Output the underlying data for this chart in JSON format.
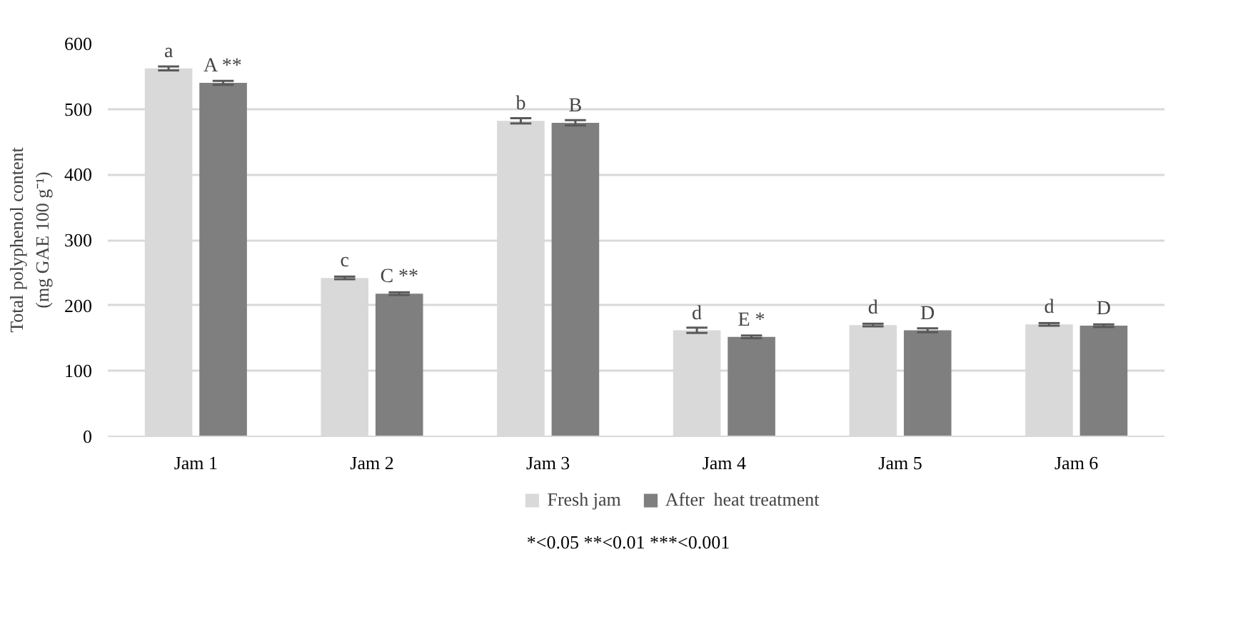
{
  "chart_data": {
    "type": "bar",
    "ylabel": "Total polyphenol content\n(mg GAE 100 g⁻¹)",
    "categories": [
      "Jam 1",
      "Jam 2",
      "Jam 3",
      "Jam 4",
      "Jam 5",
      "Jam 6"
    ],
    "series": [
      {
        "name": "Fresh jam",
        "color": "#d9d9d9",
        "values": [
          562,
          242,
          482,
          162,
          170,
          171
        ],
        "errors": [
          3,
          2,
          4,
          4,
          2,
          2
        ]
      },
      {
        "name": "After  heat treatment",
        "color": "#7f7f7f",
        "values": [
          540,
          218,
          479,
          152,
          162,
          169
        ],
        "errors": [
          3,
          2,
          4,
          2,
          3,
          2
        ]
      }
    ],
    "ylim": [
      0,
      600
    ],
    "yticks": [
      0,
      100,
      200,
      300,
      400,
      500,
      600
    ],
    "grid": "y",
    "legend": "bottom",
    "annotations": [
      {
        "text": "a",
        "x": "Jam 1",
        "y": 562
      },
      {
        "text": "A **",
        "x": "Jam 1",
        "y": 540
      },
      {
        "text": "c",
        "x": "Jam 2",
        "y": 242
      },
      {
        "text": "C **",
        "x": "Jam 2",
        "y": 218
      },
      {
        "text": "b",
        "x": "Jam 3",
        "y": 482
      },
      {
        "text": "B",
        "x": "Jam 3",
        "y": 479
      },
      {
        "text": "d",
        "x": "Jam 4",
        "y": 162
      },
      {
        "text": "E *",
        "x": "Jam 4",
        "y": 152
      },
      {
        "text": "d",
        "x": "Jam 5",
        "y": 170
      },
      {
        "text": "D",
        "x": "Jam 5",
        "y": 162
      },
      {
        "text": "d",
        "x": "Jam 6",
        "y": 171
      },
      {
        "text": "D",
        "x": "Jam 6",
        "y": 169
      },
      "*<0.05 **<0.01 ***<0.001"
    ]
  }
}
